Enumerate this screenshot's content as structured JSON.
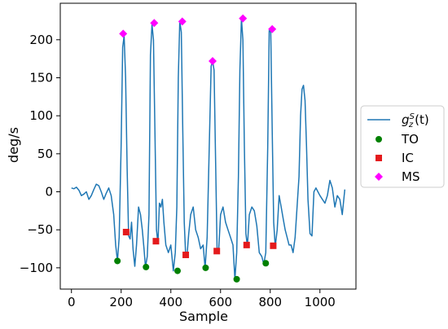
{
  "chart_data": {
    "type": "line",
    "xlabel": "Sample",
    "ylabel": "deg/s",
    "xlim": [
      -45,
      1145
    ],
    "ylim": [
      -128,
      248
    ],
    "xticks": [
      0,
      200,
      400,
      600,
      800,
      1000
    ],
    "yticks": [
      -100,
      -50,
      0,
      50,
      100,
      150,
      200
    ],
    "grid": false,
    "legend_position": "outside-right",
    "series": [
      {
        "kind": "line",
        "label_base": "g",
        "label_sup": "S",
        "label_sub": "z",
        "label_suffix": "(t)",
        "color": "#1f77b4",
        "x": [
          0,
          10,
          20,
          30,
          40,
          50,
          60,
          70,
          80,
          90,
          100,
          110,
          120,
          130,
          140,
          150,
          160,
          170,
          178,
          185,
          192,
          200,
          206,
          212,
          218,
          224,
          230,
          236,
          242,
          248,
          255,
          262,
          270,
          278,
          285,
          292,
          298,
          305,
          312,
          318,
          324,
          330,
          336,
          342,
          348,
          354,
          360,
          366,
          372,
          380,
          390,
          400,
          410,
          418,
          424,
          430,
          436,
          442,
          448,
          454,
          460,
          466,
          472,
          480,
          490,
          500,
          510,
          520,
          530,
          538,
          546,
          554,
          562,
          568,
          574,
          580,
          586,
          592,
          600,
          610,
          620,
          630,
          640,
          650,
          658,
          665,
          672,
          678,
          684,
          690,
          696,
          702,
          708,
          716,
          726,
          736,
          746,
          756,
          766,
          774,
          782,
          790,
          796,
          802,
          808,
          814,
          820,
          828,
          836,
          844,
          852,
          860,
          868,
          876,
          884,
          892,
          900,
          908,
          916,
          922,
          928,
          934,
          940,
          946,
          952,
          960,
          968,
          976,
          984,
          992,
          1000,
          1010,
          1020,
          1030,
          1040,
          1050,
          1060,
          1070,
          1080,
          1090,
          1100
        ],
        "y": [
          5,
          4,
          6,
          2,
          -5,
          -3,
          0,
          -10,
          -5,
          3,
          10,
          8,
          0,
          -10,
          -2,
          5,
          -5,
          -30,
          -70,
          -91,
          -60,
          60,
          190,
          205,
          150,
          30,
          -58,
          -62,
          -40,
          -76,
          -98,
          -70,
          -20,
          -30,
          -50,
          -75,
          -99,
          -85,
          -30,
          180,
          220,
          200,
          80,
          -50,
          -68,
          -15,
          -20,
          -10,
          -40,
          -70,
          -80,
          -70,
          -104,
          -80,
          -20,
          150,
          224,
          210,
          80,
          -40,
          -85,
          -80,
          -55,
          -30,
          -20,
          -50,
          -60,
          -75,
          -70,
          -100,
          -60,
          50,
          165,
          172,
          160,
          40,
          -75,
          -80,
          -30,
          -20,
          -40,
          -50,
          -60,
          -70,
          -115,
          -80,
          20,
          160,
          228,
          200,
          60,
          -55,
          -72,
          -30,
          -20,
          -25,
          -45,
          -80,
          -85,
          -95,
          -80,
          60,
          212,
          210,
          80,
          -40,
          -72,
          -50,
          -5,
          -20,
          -35,
          -50,
          -60,
          -70,
          -70,
          -80,
          -60,
          -20,
          20,
          100,
          135,
          140,
          120,
          60,
          -10,
          -55,
          -58,
          0,
          5,
          0,
          -5,
          -10,
          -15,
          -5,
          15,
          5,
          -20,
          -5,
          -10,
          -30,
          3
        ]
      },
      {
        "kind": "marker",
        "label": "TO",
        "color": "#008000",
        "shape": "circle",
        "x": [
          185,
          300,
          427,
          540,
          665,
          782
        ],
        "y": [
          -91,
          -99,
          -104,
          -100,
          -115,
          -94
        ]
      },
      {
        "kind": "marker",
        "label": "IC",
        "color": "#e41a1c",
        "shape": "square",
        "x": [
          220,
          340,
          460,
          585,
          705,
          812
        ],
        "y": [
          -53,
          -65,
          -83,
          -78,
          -70,
          -71
        ]
      },
      {
        "kind": "marker",
        "label": "MS",
        "color": "#ff00ff",
        "shape": "diamond",
        "x": [
          208,
          333,
          446,
          568,
          690,
          808
        ],
        "y": [
          208,
          222,
          224,
          172,
          228,
          214
        ]
      }
    ]
  }
}
